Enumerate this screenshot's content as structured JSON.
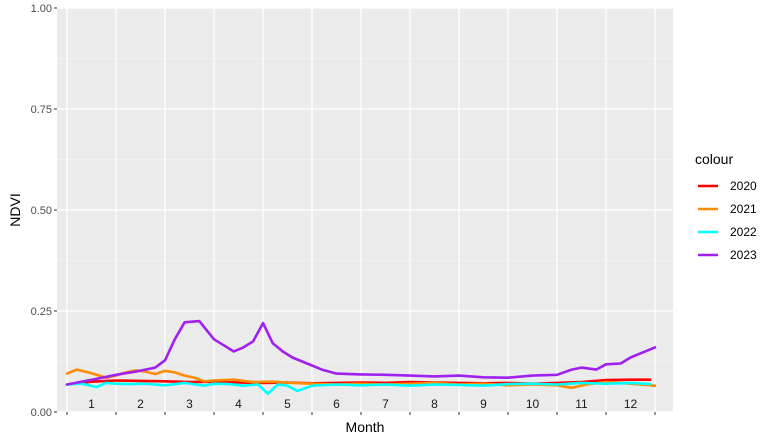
{
  "chart_data": {
    "type": "line",
    "xlabel": "Month",
    "ylabel": "NDVI",
    "ylim": [
      0,
      1
    ],
    "xlim": [
      0,
      12
    ],
    "grid": true,
    "legend_position": "right",
    "legend_title": "colour",
    "y_ticks": [
      "0.00",
      "0.25",
      "0.50",
      "0.75",
      "1.00"
    ],
    "y_tick_values": [
      0,
      0.25,
      0.5,
      0.75,
      1.0
    ],
    "month_labels": [
      "1",
      "2",
      "3",
      "4",
      "5",
      "6",
      "7",
      "8",
      "9",
      "10",
      "11",
      "12"
    ],
    "series": [
      {
        "name": "2020",
        "color": "#ff0000",
        "x": [
          0.0,
          0.5,
          1.0,
          1.5,
          2.0,
          2.5,
          3.0,
          3.5,
          4.0,
          4.5,
          5.0,
          5.5,
          6.0,
          6.5,
          7.0,
          7.5,
          8.0,
          8.5,
          9.0,
          9.5,
          10.0,
          10.5,
          11.0,
          11.5,
          11.9
        ],
        "values": [
          0.068,
          0.075,
          0.078,
          0.077,
          0.076,
          0.074,
          0.075,
          0.073,
          0.072,
          0.073,
          0.071,
          0.072,
          0.073,
          0.072,
          0.074,
          0.073,
          0.072,
          0.071,
          0.072,
          0.07,
          0.072,
          0.074,
          0.079,
          0.08,
          0.08
        ]
      },
      {
        "name": "2021",
        "color": "#ff8c00",
        "x": [
          0.0,
          0.2,
          0.5,
          0.8,
          1.0,
          1.2,
          1.4,
          1.6,
          1.8,
          2.0,
          2.2,
          2.4,
          2.6,
          2.8,
          3.0,
          3.4,
          3.8,
          4.2,
          4.6,
          5.0,
          5.5,
          6.0,
          6.5,
          7.0,
          7.5,
          8.0,
          8.5,
          9.0,
          9.5,
          10.0,
          10.3,
          10.6,
          11.0,
          11.5,
          12.0
        ],
        "values": [
          0.095,
          0.105,
          0.096,
          0.085,
          0.09,
          0.098,
          0.103,
          0.1,
          0.094,
          0.102,
          0.098,
          0.09,
          0.085,
          0.076,
          0.078,
          0.08,
          0.074,
          0.075,
          0.072,
          0.07,
          0.068,
          0.07,
          0.068,
          0.07,
          0.072,
          0.068,
          0.07,
          0.066,
          0.068,
          0.066,
          0.06,
          0.068,
          0.074,
          0.07,
          0.065
        ]
      },
      {
        "name": "2022",
        "color": "#00ffff",
        "x": [
          0.0,
          0.3,
          0.6,
          0.8,
          1.0,
          1.3,
          1.6,
          2.0,
          2.4,
          2.8,
          3.0,
          3.3,
          3.6,
          3.9,
          4.1,
          4.3,
          4.5,
          4.7,
          5.0,
          5.5,
          6.0,
          6.5,
          7.0,
          7.5,
          8.0,
          8.5,
          9.0,
          9.5,
          10.0,
          10.5,
          11.0,
          11.5,
          11.9
        ],
        "values": [
          0.068,
          0.07,
          0.062,
          0.072,
          0.07,
          0.069,
          0.07,
          0.066,
          0.072,
          0.065,
          0.07,
          0.069,
          0.065,
          0.068,
          0.045,
          0.068,
          0.065,
          0.052,
          0.065,
          0.068,
          0.066,
          0.068,
          0.065,
          0.068,
          0.067,
          0.065,
          0.069,
          0.07,
          0.068,
          0.072,
          0.07,
          0.072,
          0.069
        ]
      },
      {
        "name": "2023",
        "color": "#a020f0",
        "x": [
          0.0,
          0.3,
          0.6,
          1.0,
          1.4,
          1.8,
          2.0,
          2.2,
          2.4,
          2.7,
          3.0,
          3.2,
          3.4,
          3.6,
          3.8,
          4.0,
          4.2,
          4.4,
          4.6,
          4.9,
          5.2,
          5.5,
          6.0,
          6.5,
          7.0,
          7.5,
          8.0,
          8.5,
          9.0,
          9.5,
          10.0,
          10.3,
          10.5,
          10.8,
          11.0,
          11.3,
          11.5,
          11.8,
          12.0
        ],
        "values": [
          0.068,
          0.075,
          0.082,
          0.092,
          0.1,
          0.11,
          0.128,
          0.18,
          0.222,
          0.225,
          0.18,
          0.165,
          0.15,
          0.16,
          0.175,
          0.22,
          0.17,
          0.15,
          0.135,
          0.12,
          0.105,
          0.095,
          0.093,
          0.092,
          0.09,
          0.088,
          0.09,
          0.086,
          0.085,
          0.09,
          0.092,
          0.105,
          0.11,
          0.105,
          0.118,
          0.12,
          0.135,
          0.15,
          0.16
        ]
      }
    ]
  }
}
